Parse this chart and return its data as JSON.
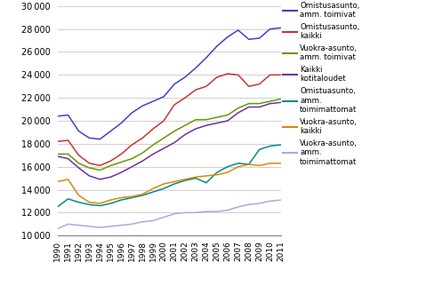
{
  "years": [
    1990,
    1991,
    1992,
    1993,
    1994,
    1995,
    1996,
    1997,
    1998,
    1999,
    2000,
    2001,
    2002,
    2003,
    2004,
    2005,
    2006,
    2007,
    2008,
    2009,
    2010,
    2011
  ],
  "series": [
    {
      "label": "Omistusasunto,\namm. toimivat",
      "color": "#4040cc",
      "values": [
        20400,
        20500,
        19100,
        18500,
        18400,
        19100,
        19800,
        20700,
        21300,
        21700,
        22100,
        23200,
        23800,
        24600,
        25500,
        26500,
        27300,
        27900,
        27100,
        27200,
        28000,
        28100
      ]
    },
    {
      "label": "Omistusasunto,\nkaikki",
      "color": "#cc3333",
      "values": [
        18200,
        18300,
        17000,
        16300,
        16100,
        16500,
        17100,
        17900,
        18500,
        19300,
        20000,
        21400,
        22000,
        22700,
        23000,
        23800,
        24100,
        24000,
        23000,
        23200,
        24000,
        24000
      ]
    },
    {
      "label": "Vuokra-asunto,\namm. toimivat",
      "color": "#669900",
      "values": [
        17100,
        17100,
        16300,
        15900,
        15700,
        16100,
        16400,
        16700,
        17200,
        17900,
        18500,
        19100,
        19600,
        20100,
        20100,
        20300,
        20500,
        21100,
        21500,
        21500,
        21700,
        21900
      ]
    },
    {
      "label": "Kaikki\nkotitaloudet",
      "color": "#7030a0",
      "values": [
        16900,
        16700,
        15900,
        15200,
        14900,
        15100,
        15500,
        16000,
        16500,
        17100,
        17600,
        18100,
        18800,
        19300,
        19600,
        19800,
        20000,
        20700,
        21200,
        21200,
        21500,
        21600
      ]
    },
    {
      "label": "Omistuasunto,\namm.\ntoimimattomat",
      "color": "#008b8b",
      "values": [
        12500,
        13200,
        12900,
        12700,
        12600,
        12800,
        13100,
        13300,
        13500,
        13800,
        14100,
        14500,
        14800,
        15000,
        14600,
        15500,
        16000,
        16300,
        16200,
        17500,
        17800,
        17900
      ]
    },
    {
      "label": "Vuokra-asunto,\nkaikki",
      "color": "#dd8800",
      "values": [
        14700,
        14900,
        13500,
        12900,
        12800,
        13100,
        13300,
        13400,
        13600,
        14100,
        14500,
        14700,
        14900,
        15100,
        15200,
        15300,
        15500,
        16000,
        16200,
        16100,
        16300,
        16300
      ]
    },
    {
      "label": "Vuokra-asunto,\namm.\ntoimimattomat",
      "color": "#aaaadd",
      "values": [
        10600,
        11000,
        10900,
        10800,
        10700,
        10800,
        10900,
        11000,
        11200,
        11300,
        11600,
        11900,
        12000,
        12000,
        12100,
        12100,
        12200,
        12500,
        12700,
        12800,
        13000,
        13100
      ]
    }
  ],
  "ylim": [
    10000,
    30000
  ],
  "yticks": [
    10000,
    12000,
    14000,
    16000,
    18000,
    20000,
    22000,
    24000,
    26000,
    28000,
    30000
  ],
  "background_color": "#ffffff",
  "grid_color": "#c8c8c8"
}
